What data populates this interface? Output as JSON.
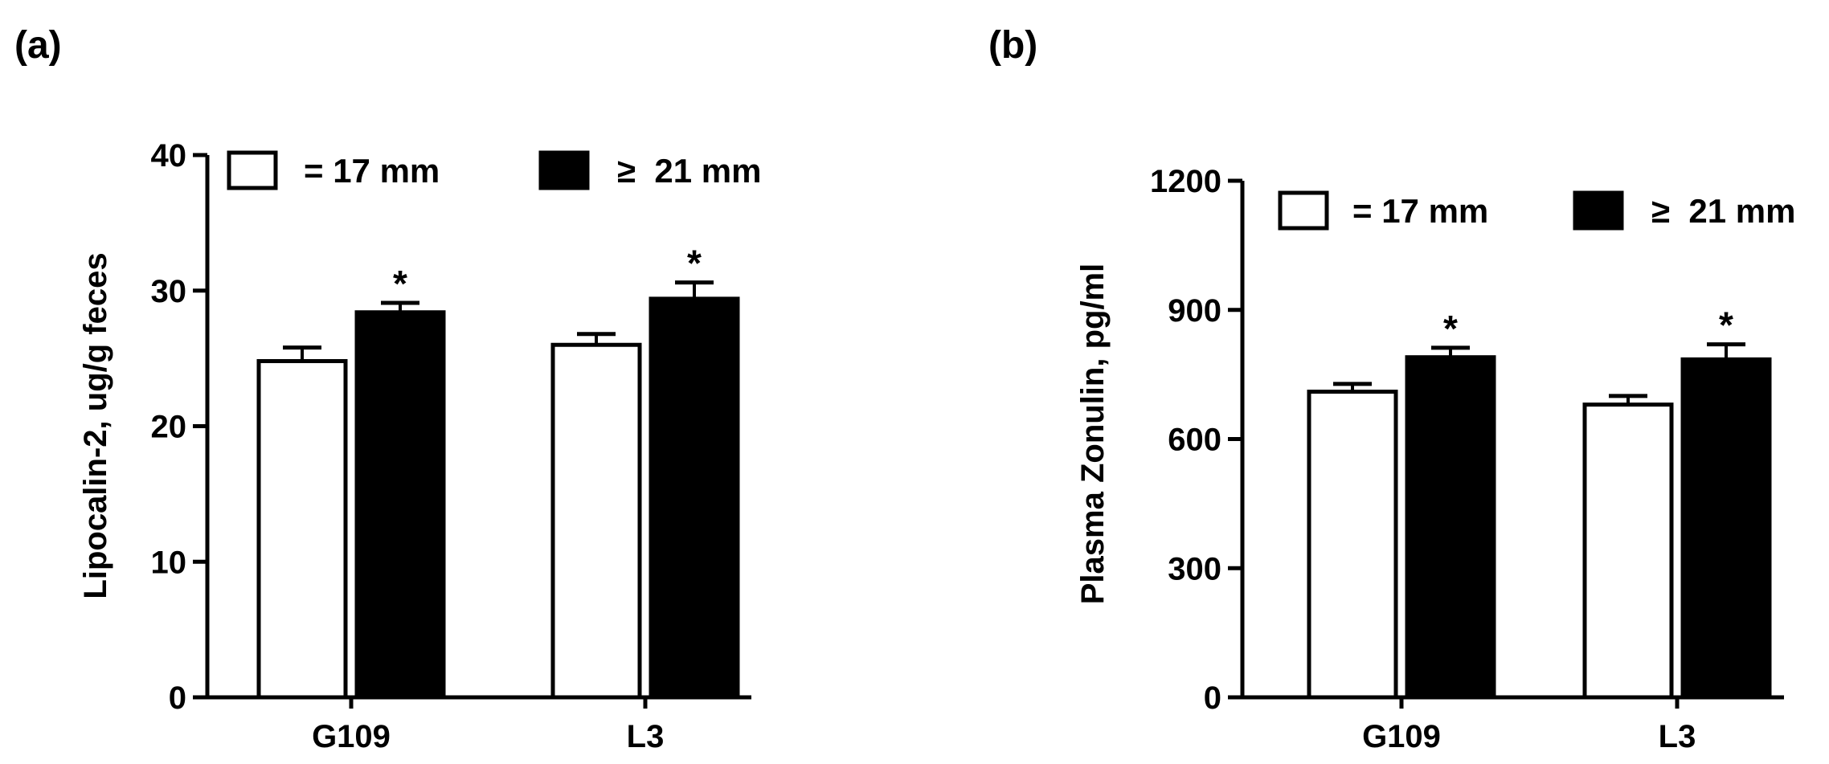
{
  "chart_data": [
    {
      "type": "bar",
      "panel_label": "(a)",
      "title": "",
      "xlabel": "",
      "ylabel": "Lipocalin-2, ug/g feces",
      "ylim": [
        0,
        40
      ],
      "yticks": [
        0,
        10,
        20,
        30,
        40
      ],
      "categories": [
        "G109",
        "L3"
      ],
      "series": [
        {
          "name": "= 17 mm",
          "color": "#ffffff",
          "values": [
            24.8,
            26.0
          ],
          "errors": [
            1.0,
            0.8
          ]
        },
        {
          "name": "≥  21 mm",
          "color": "#000000",
          "values": [
            28.4,
            29.4
          ],
          "errors": [
            0.7,
            1.2
          ]
        }
      ],
      "annotations": [
        {
          "category": "G109",
          "series": 1,
          "text": "*"
        },
        {
          "category": "L3",
          "series": 1,
          "text": "*"
        }
      ],
      "legend": "top-left",
      "grid": false
    },
    {
      "type": "bar",
      "panel_label": "(b)",
      "title": "",
      "xlabel": "",
      "ylabel": "Plasma Zonulin, pg/ml",
      "ylim": [
        0,
        1200
      ],
      "yticks": [
        0,
        300,
        600,
        900,
        1200
      ],
      "categories": [
        "G109",
        "L3"
      ],
      "series": [
        {
          "name": "= 17 mm",
          "color": "#ffffff",
          "values": [
            710,
            680
          ],
          "errors": [
            18,
            20
          ]
        },
        {
          "name": "≥  21 mm",
          "color": "#000000",
          "values": [
            790,
            785
          ],
          "errors": [
            22,
            35
          ]
        }
      ],
      "annotations": [
        {
          "category": "G109",
          "series": 1,
          "text": "*"
        },
        {
          "category": "L3",
          "series": 1,
          "text": "*"
        }
      ],
      "legend": "top-left",
      "grid": false
    }
  ]
}
